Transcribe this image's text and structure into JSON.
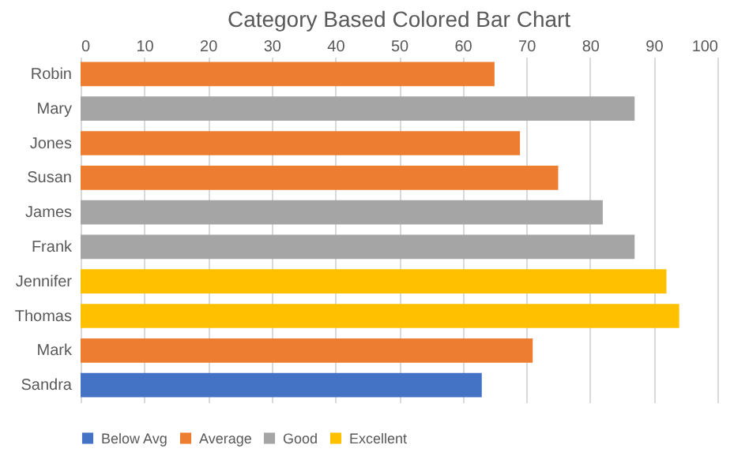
{
  "chart_data": {
    "type": "bar",
    "orientation": "horizontal",
    "title": "Category Based Colored Bar Chart",
    "categories": [
      "Robin",
      "Mary",
      "Jones",
      "Susan",
      "James",
      "Frank",
      "Jennifer",
      "Thomas",
      "Mark",
      "Sandra"
    ],
    "series": [
      {
        "name": "Below Avg",
        "color": "#4472c4",
        "values": [
          null,
          null,
          null,
          null,
          null,
          null,
          null,
          null,
          null,
          63
        ]
      },
      {
        "name": "Average",
        "color": "#ed7d31",
        "values": [
          65,
          null,
          69,
          75,
          null,
          null,
          null,
          null,
          71,
          null
        ]
      },
      {
        "name": "Good",
        "color": "#a5a5a5",
        "values": [
          null,
          87,
          null,
          null,
          82,
          87,
          null,
          null,
          null,
          null
        ]
      },
      {
        "name": "Excellent",
        "color": "#ffc000",
        "values": [
          null,
          null,
          null,
          null,
          null,
          null,
          92,
          94,
          null,
          null
        ]
      }
    ],
    "xlim": [
      0,
      100
    ],
    "xticks": [
      0,
      10,
      20,
      30,
      40,
      50,
      60,
      70,
      80,
      90,
      100
    ],
    "grid": "x",
    "legend": "bottom"
  }
}
